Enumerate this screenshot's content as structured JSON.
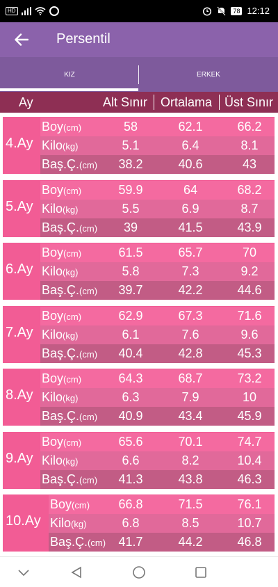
{
  "status_bar": {
    "hd": "HD",
    "battery": "78",
    "time": "12:12"
  },
  "app_bar": {
    "title": "Persentil"
  },
  "tabs": [
    {
      "label": "KIZ"
    },
    {
      "label": "ERKEK"
    }
  ],
  "table_header": {
    "month": "Ay",
    "col_low": "Alt Sınır",
    "col_mid": "Ortalama",
    "col_high": "Üst Sınır"
  },
  "row_labels": {
    "boy": "Boy",
    "boy_unit": "(cm)",
    "kilo": "Kilo",
    "kilo_unit": "(kg)",
    "bas": "Baş.Ç.",
    "bas_unit": "(cm)"
  },
  "months": [
    {
      "label": "4.Ay",
      "boy": [
        "58",
        "62.1",
        "66.2"
      ],
      "kilo": [
        "5.1",
        "6.4",
        "8.1"
      ],
      "bas": [
        "38.2",
        "40.6",
        "43"
      ]
    },
    {
      "label": "5.Ay",
      "boy": [
        "59.9",
        "64",
        "68.2"
      ],
      "kilo": [
        "5.5",
        "6.9",
        "8.7"
      ],
      "bas": [
        "39",
        "41.5",
        "43.9"
      ]
    },
    {
      "label": "6.Ay",
      "boy": [
        "61.5",
        "65.7",
        "70"
      ],
      "kilo": [
        "5.8",
        "7.3",
        "9.2"
      ],
      "bas": [
        "39.7",
        "42.2",
        "44.6"
      ]
    },
    {
      "label": "7.Ay",
      "boy": [
        "62.9",
        "67.3",
        "71.6"
      ],
      "kilo": [
        "6.1",
        "7.6",
        "9.6"
      ],
      "bas": [
        "40.4",
        "42.8",
        "45.3"
      ]
    },
    {
      "label": "8.Ay",
      "boy": [
        "64.3",
        "68.7",
        "73.2"
      ],
      "kilo": [
        "6.3",
        "7.9",
        "10"
      ],
      "bas": [
        "40.9",
        "43.4",
        "45.9"
      ]
    },
    {
      "label": "9.Ay",
      "boy": [
        "65.6",
        "70.1",
        "74.7"
      ],
      "kilo": [
        "6.6",
        "8.2",
        "10.4"
      ],
      "bas": [
        "41.3",
        "43.8",
        "46.3"
      ]
    },
    {
      "label": "10.Ay",
      "boy": [
        "66.8",
        "71.5",
        "76.1"
      ],
      "kilo": [
        "6.8",
        "8.5",
        "10.7"
      ],
      "bas": [
        "41.7",
        "44.2",
        "46.8"
      ]
    }
  ],
  "colors": {
    "app_bar": "#8b62ab",
    "tab_bar": "#7e5a9c",
    "header": "#8e2f54",
    "block": "#f25c95",
    "row_boy": "#f46aa0",
    "row_kilo": "#e1699a",
    "row_bas": "#c25c85"
  },
  "icons": {
    "back": "arrow-left-icon",
    "nav_down": "chevron-down-icon",
    "nav_back": "triangle-back-icon",
    "nav_home": "circle-home-icon",
    "nav_recent": "square-recent-icon"
  }
}
